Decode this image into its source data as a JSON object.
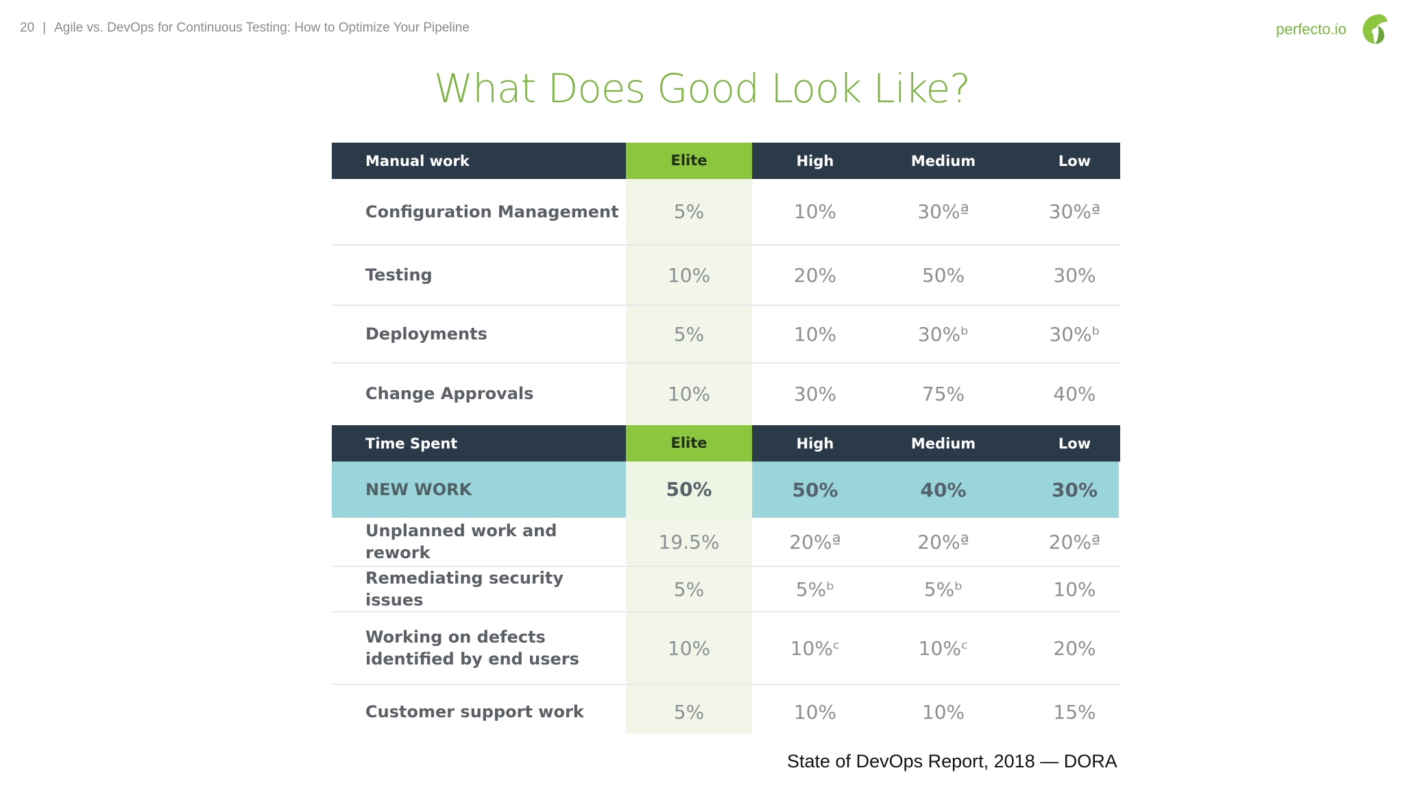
{
  "header": {
    "page_number": "20",
    "separator": "|",
    "deck_title": "Agile vs. DevOps for Continuous Testing: How to Optimize Your Pipeline",
    "brand": "perfecto.io"
  },
  "title": "What Does Good Look Like?",
  "sections": [
    {
      "header": {
        "label": "Manual work",
        "elite": "Elite",
        "high": "High",
        "medium": "Medium",
        "low": "Low"
      },
      "rows": [
        {
          "label": "Configuration Management",
          "elite": "5%",
          "high": "10%",
          "medium": "30%ª",
          "low": "30%ª"
        },
        {
          "label": "Testing",
          "elite": "10%",
          "high": "20%",
          "medium": "50%",
          "low": "30%"
        },
        {
          "label": "Deployments",
          "elite": "5%",
          "high": "10%",
          "medium": "30%ᵇ",
          "low": "30%ᵇ"
        },
        {
          "label": "Change Approvals",
          "elite": "10%",
          "high": "30%",
          "medium": "75%",
          "low": "40%"
        }
      ]
    },
    {
      "header": {
        "label": "Time Spent",
        "elite": "Elite",
        "high": "High",
        "medium": "Medium",
        "low": "Low"
      },
      "rows": [
        {
          "label": "NEW WORK",
          "elite": "50%",
          "high": "50%",
          "medium": "40%",
          "low": "30%"
        },
        {
          "label": "Unplanned work and rework",
          "elite": "19.5%",
          "high": "20%ª",
          "medium": "20%ª",
          "low": "20%ª"
        },
        {
          "label": "Remediating security issues",
          "elite": "5%",
          "high": "5%ᵇ",
          "medium": "5%ᵇ",
          "low": "10%"
        },
        {
          "label": "Working on defects identified by end users",
          "elite": "10%",
          "high": "10%ᶜ",
          "medium": "10%ᶜ",
          "low": "20%"
        },
        {
          "label": "Customer support work",
          "elite": "5%",
          "high": "10%",
          "medium": "10%",
          "low": "15%"
        }
      ]
    }
  ],
  "caption": "State of DevOps Report, 2018 — DORA",
  "colors": {
    "accent_green": "#7ab63e",
    "header_dark": "#2b3a48",
    "elite_green": "#8cc63f",
    "highlight_teal": "#9ad5dc"
  }
}
